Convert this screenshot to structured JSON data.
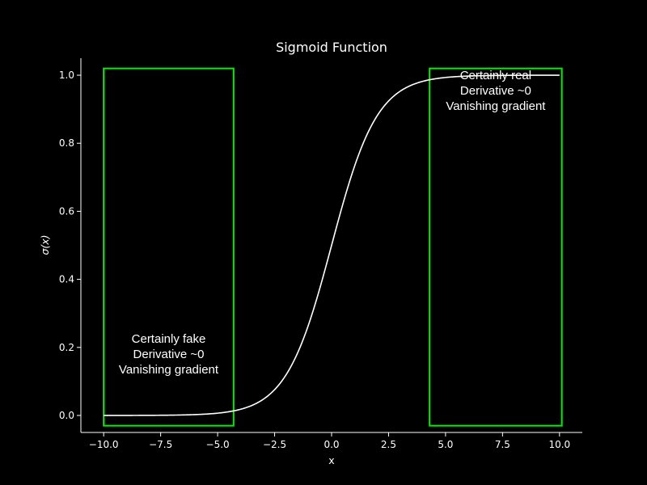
{
  "chart_data": {
    "type": "line",
    "title": "Sigmoid Function",
    "xlabel": "x",
    "ylabel": "σ(x)",
    "xlim": [
      -11.0,
      11.0
    ],
    "ylim": [
      -0.05,
      1.05
    ],
    "x_ticks": [
      -10.0,
      -7.5,
      -5.0,
      -2.5,
      0.0,
      2.5,
      5.0,
      7.5,
      10.0
    ],
    "x_tick_labels": [
      "−10.0",
      "−7.5",
      "−5.0",
      "−2.5",
      "0.0",
      "2.5",
      "5.0",
      "7.5",
      "10.0"
    ],
    "y_ticks": [
      0.0,
      0.2,
      0.4,
      0.6,
      0.8,
      1.0
    ],
    "y_tick_labels": [
      "0.0",
      "0.2",
      "0.4",
      "0.6",
      "0.8",
      "1.0"
    ],
    "grid": false,
    "series": [
      {
        "function": "sigmoid",
        "x_range": [
          -10,
          10
        ],
        "color": "#ffffff"
      }
    ],
    "annotations": [
      {
        "x_range": [
          -10.0,
          -4.3
        ],
        "y_range": [
          -0.03,
          1.02
        ],
        "edge_color": "#00ee00",
        "lines": [
          "Certainly fake",
          "Derivative ~0",
          "Vanishing gradient"
        ],
        "text_x": -7.15,
        "text_y": 0.18
      },
      {
        "x_range": [
          4.3,
          10.1
        ],
        "y_range": [
          -0.03,
          1.02
        ],
        "edge_color": "#00ee00",
        "lines": [
          "Certainly real",
          "Derivative ~0",
          "Vanishing gradient"
        ],
        "text_x": 7.2,
        "text_y": 0.955
      }
    ]
  }
}
